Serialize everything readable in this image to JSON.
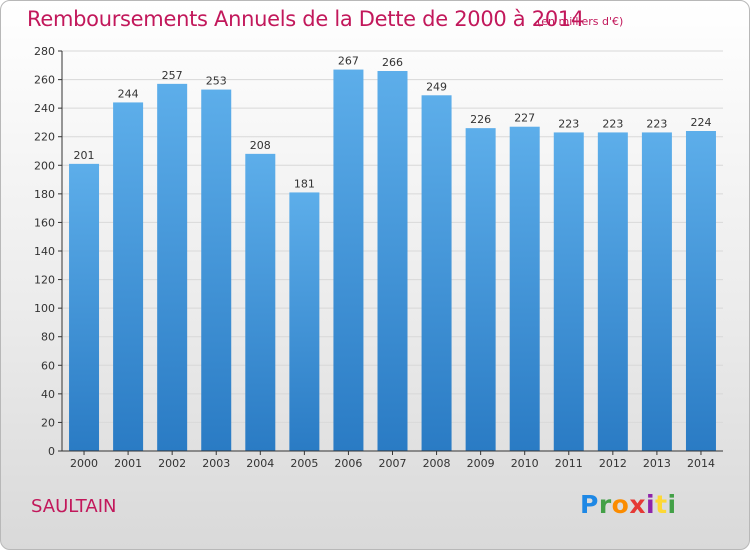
{
  "header": {
    "title": "Remboursements Annuels de la Dette de 2000 à 2014",
    "unit_note": "(en milliers d'€)"
  },
  "footer": {
    "place": "SAULTAIN",
    "logo_text": "Proxiti"
  },
  "colors": {
    "title": "#c2185b",
    "bar_top": "#5daeea",
    "bar_bottom": "#2a7bc4",
    "grid": "#d8d8d8",
    "axis": "#333333"
  },
  "chart_data": {
    "type": "bar",
    "title": "Remboursements Annuels de la Dette de 2000 à 2014",
    "subtitle": "(en milliers d'€)",
    "xlabel": "",
    "ylabel": "",
    "categories": [
      "2000",
      "2001",
      "2002",
      "2003",
      "2004",
      "2005",
      "2006",
      "2007",
      "2008",
      "2009",
      "2010",
      "2011",
      "2012",
      "2013",
      "2014"
    ],
    "values": [
      201,
      244,
      257,
      253,
      208,
      181,
      267,
      266,
      249,
      226,
      227,
      223,
      223,
      223,
      224
    ],
    "ylim": [
      0,
      280
    ],
    "yticks": [
      0,
      20,
      40,
      60,
      80,
      100,
      120,
      140,
      160,
      180,
      200,
      220,
      240,
      260,
      280
    ],
    "grid": true,
    "legend": "none"
  }
}
